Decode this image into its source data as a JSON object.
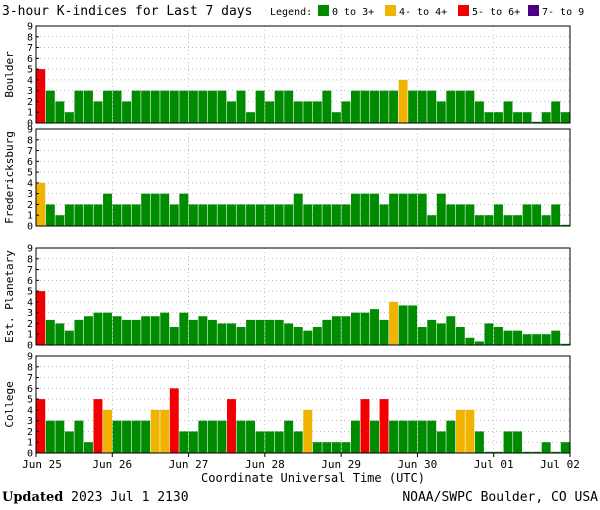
{
  "chart_data": {
    "type": "bar",
    "title": "3-hour K-indices for Last 7 days",
    "legend": {
      "label": "Legend:",
      "placement": "top-right",
      "items": [
        {
          "label": "0 to 3+",
          "color": "#008c00"
        },
        {
          "label": "4- to 4+",
          "color": "#f0b400"
        },
        {
          "label": "5- to 6+",
          "color": "#f00000"
        },
        {
          "label": "7- to 9",
          "color": "#4b0082"
        }
      ]
    },
    "xlabel": "Coordinate Universal Time (UTC)",
    "x_tick_labels": [
      "Jun 25",
      "Jun 26",
      "Jun 27",
      "Jun 28",
      "Jun 29",
      "Jun 30",
      "Jul 01",
      "Jul 02"
    ],
    "ylim": [
      0,
      9
    ],
    "y_ticks": [
      0,
      1,
      2,
      3,
      4,
      5,
      6,
      7,
      8,
      9
    ],
    "grid": true,
    "bins_per_panel": 56,
    "panels": [
      {
        "name": "Boulder",
        "values": [
          5,
          3,
          2,
          1,
          3,
          3,
          2,
          3,
          3,
          2,
          3,
          3,
          3,
          3,
          3,
          3,
          3,
          3,
          3,
          3,
          2,
          3,
          1,
          3,
          2,
          3,
          3,
          2,
          2,
          2,
          3,
          1,
          2,
          3,
          3,
          3,
          3,
          3,
          4,
          3,
          3,
          3,
          2,
          3,
          3,
          3,
          2,
          1,
          1,
          2,
          1,
          1,
          0,
          1,
          2,
          1
        ]
      },
      {
        "name": "Fredericksburg",
        "values": [
          4,
          2,
          1,
          2,
          2,
          2,
          2,
          3,
          2,
          2,
          2,
          3,
          3,
          3,
          2,
          3,
          2,
          2,
          2,
          2,
          2,
          2,
          2,
          2,
          2,
          2,
          2,
          3,
          2,
          2,
          2,
          2,
          2,
          3,
          3,
          3,
          2,
          3,
          3,
          3,
          3,
          1,
          3,
          2,
          2,
          2,
          1,
          1,
          2,
          1,
          1,
          2,
          2,
          1,
          2,
          0
        ]
      },
      {
        "name": "Est. Planetary",
        "values": [
          5,
          2.33,
          2,
          1.33,
          2.33,
          2.67,
          3,
          3,
          2.67,
          2.33,
          2.33,
          2.67,
          2.67,
          3,
          1.67,
          3,
          2.33,
          2.67,
          2.33,
          2,
          2,
          1.67,
          2.33,
          2.33,
          2.33,
          2.33,
          2,
          1.67,
          1.33,
          1.67,
          2.33,
          2.67,
          2.67,
          3,
          3,
          3.33,
          2.33,
          4,
          3.67,
          3.67,
          1.67,
          2.33,
          2,
          2.67,
          1.67,
          0.67,
          0.33,
          2,
          1.67,
          1.33,
          1.33,
          1,
          1,
          1,
          1.33,
          0
        ]
      },
      {
        "name": "College",
        "values": [
          5,
          3,
          3,
          2,
          3,
          1,
          5,
          4,
          3,
          3,
          3,
          3,
          4,
          4,
          6,
          2,
          2,
          3,
          3,
          3,
          5,
          3,
          3,
          2,
          2,
          2,
          3,
          2,
          4,
          1,
          1,
          1,
          1,
          3,
          5,
          3,
          5,
          3,
          3,
          3,
          3,
          3,
          2,
          3,
          4,
          4,
          2,
          0,
          0,
          2,
          2,
          0,
          0,
          1,
          0,
          1
        ]
      }
    ]
  },
  "footer": {
    "updated_label": "Updated",
    "updated_time": "2023 Jul  1 2130",
    "source": "NOAA/SWPC Boulder, CO USA"
  }
}
